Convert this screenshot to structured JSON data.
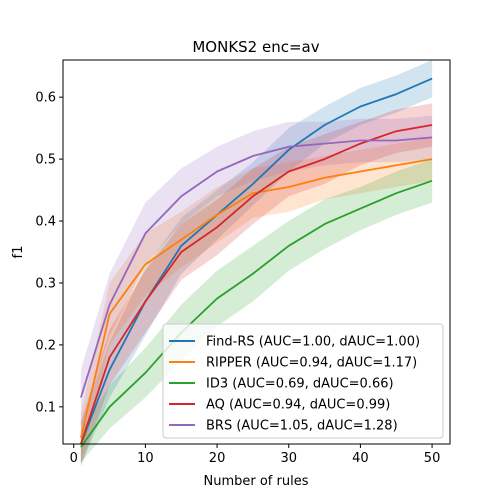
{
  "chart_data": {
    "type": "line",
    "title": "MONKS2 enc=av",
    "xlabel": "Number of rules",
    "ylabel": "f1",
    "xlim": [
      -1.5,
      52.5
    ],
    "ylim": [
      0.04,
      0.66
    ],
    "xticks": [
      0,
      10,
      20,
      30,
      40,
      50
    ],
    "yticks": [
      0.1,
      0.2,
      0.3,
      0.4,
      0.5,
      0.6
    ],
    "ytick_labels": [
      "0.1",
      "0.2",
      "0.3",
      "0.4",
      "0.5",
      "0.6"
    ],
    "legend_position": "lower-right",
    "grid": false,
    "x": [
      1,
      5,
      10,
      15,
      20,
      25,
      30,
      35,
      40,
      45,
      50
    ],
    "series": [
      {
        "name": "Find-RS (AUC=1.00, dAUC=1.00)",
        "color": "#1f77b4",
        "values": [
          0.04,
          0.16,
          0.27,
          0.36,
          0.41,
          0.46,
          0.515,
          0.555,
          0.585,
          0.605,
          0.63
        ],
        "band": [
          0.035,
          0.045,
          0.055,
          0.045,
          0.04,
          0.035,
          0.035,
          0.03,
          0.03,
          0.03,
          0.03
        ]
      },
      {
        "name": "RIPPER (AUC=0.94, dAUC=1.17)",
        "color": "#ff7f0e",
        "values": [
          0.05,
          0.25,
          0.33,
          0.37,
          0.41,
          0.445,
          0.455,
          0.47,
          0.48,
          0.49,
          0.5
        ],
        "band": [
          0.04,
          0.05,
          0.05,
          0.045,
          0.045,
          0.04,
          0.04,
          0.035,
          0.035,
          0.035,
          0.035
        ]
      },
      {
        "name": "ID3 (AUC=0.69, dAUC=0.66)",
        "color": "#2ca02c",
        "values": [
          0.035,
          0.1,
          0.155,
          0.22,
          0.275,
          0.315,
          0.36,
          0.395,
          0.42,
          0.445,
          0.465
        ],
        "band": [
          0.025,
          0.035,
          0.04,
          0.045,
          0.045,
          0.045,
          0.04,
          0.04,
          0.035,
          0.035,
          0.035
        ]
      },
      {
        "name": "AQ (AUC=0.94, dAUC=0.99)",
        "color": "#d62728",
        "values": [
          0.04,
          0.18,
          0.27,
          0.35,
          0.39,
          0.44,
          0.48,
          0.5,
          0.525,
          0.545,
          0.555
        ],
        "band": [
          0.035,
          0.045,
          0.05,
          0.045,
          0.045,
          0.045,
          0.04,
          0.04,
          0.035,
          0.035,
          0.035
        ]
      },
      {
        "name": "BRS (AUC=1.05, dAUC=1.28)",
        "color": "#9467bd",
        "values": [
          0.115,
          0.265,
          0.38,
          0.44,
          0.48,
          0.505,
          0.52,
          0.525,
          0.53,
          0.53,
          0.535
        ],
        "band": [
          0.045,
          0.05,
          0.05,
          0.045,
          0.04,
          0.04,
          0.04,
          0.035,
          0.035,
          0.035,
          0.035
        ]
      }
    ]
  }
}
